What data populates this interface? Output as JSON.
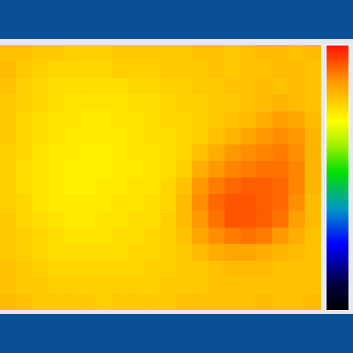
{
  "chart_data": {
    "type": "heatmap",
    "tick_labels": false,
    "colorbar": {
      "range": [
        0,
        1
      ]
    },
    "cells": [
      [
        0.8,
        0.8,
        0.79,
        0.79,
        0.78,
        0.78,
        0.78,
        0.79,
        0.79,
        0.79,
        0.79,
        0.79,
        0.8,
        0.8,
        0.79,
        0.8,
        0.81,
        0.81,
        0.8,
        0.81
      ],
      [
        0.81,
        0.79,
        0.78,
        0.77,
        0.77,
        0.77,
        0.77,
        0.78,
        0.78,
        0.78,
        0.79,
        0.79,
        0.79,
        0.8,
        0.79,
        0.8,
        0.8,
        0.81,
        0.81,
        0.8
      ],
      [
        0.8,
        0.78,
        0.77,
        0.76,
        0.76,
        0.76,
        0.76,
        0.76,
        0.77,
        0.77,
        0.78,
        0.78,
        0.79,
        0.79,
        0.8,
        0.8,
        0.81,
        0.8,
        0.81,
        0.8
      ],
      [
        0.79,
        0.78,
        0.77,
        0.76,
        0.75,
        0.75,
        0.75,
        0.75,
        0.76,
        0.76,
        0.77,
        0.78,
        0.78,
        0.79,
        0.79,
        0.8,
        0.81,
        0.82,
        0.81,
        0.8
      ],
      [
        0.79,
        0.77,
        0.76,
        0.75,
        0.75,
        0.74,
        0.74,
        0.75,
        0.75,
        0.76,
        0.77,
        0.77,
        0.78,
        0.79,
        0.8,
        0.81,
        0.83,
        0.85,
        0.84,
        0.81
      ],
      [
        0.79,
        0.77,
        0.76,
        0.75,
        0.74,
        0.74,
        0.74,
        0.74,
        0.75,
        0.76,
        0.76,
        0.77,
        0.78,
        0.8,
        0.82,
        0.84,
        0.86,
        0.87,
        0.86,
        0.82
      ],
      [
        0.78,
        0.77,
        0.75,
        0.74,
        0.74,
        0.73,
        0.73,
        0.74,
        0.75,
        0.75,
        0.76,
        0.77,
        0.8,
        0.83,
        0.86,
        0.87,
        0.88,
        0.89,
        0.87,
        0.82
      ],
      [
        0.78,
        0.76,
        0.75,
        0.74,
        0.73,
        0.73,
        0.73,
        0.74,
        0.74,
        0.75,
        0.76,
        0.78,
        0.83,
        0.86,
        0.88,
        0.89,
        0.9,
        0.9,
        0.88,
        0.82
      ],
      [
        0.78,
        0.76,
        0.75,
        0.74,
        0.73,
        0.73,
        0.74,
        0.74,
        0.75,
        0.75,
        0.77,
        0.8,
        0.86,
        0.89,
        0.91,
        0.92,
        0.92,
        0.91,
        0.88,
        0.82
      ],
      [
        0.78,
        0.77,
        0.75,
        0.74,
        0.74,
        0.74,
        0.74,
        0.75,
        0.75,
        0.76,
        0.77,
        0.81,
        0.87,
        0.91,
        0.93,
        0.93,
        0.92,
        0.91,
        0.87,
        0.81
      ],
      [
        0.79,
        0.77,
        0.76,
        0.75,
        0.74,
        0.74,
        0.75,
        0.75,
        0.76,
        0.76,
        0.78,
        0.81,
        0.86,
        0.9,
        0.93,
        0.93,
        0.92,
        0.9,
        0.85,
        0.81
      ],
      [
        0.79,
        0.78,
        0.77,
        0.76,
        0.75,
        0.75,
        0.75,
        0.76,
        0.76,
        0.77,
        0.78,
        0.8,
        0.84,
        0.87,
        0.89,
        0.9,
        0.89,
        0.86,
        0.83,
        0.8
      ],
      [
        0.79,
        0.78,
        0.77,
        0.76,
        0.76,
        0.76,
        0.76,
        0.76,
        0.77,
        0.77,
        0.78,
        0.79,
        0.81,
        0.83,
        0.84,
        0.84,
        0.83,
        0.82,
        0.81,
        0.8
      ],
      [
        0.8,
        0.79,
        0.78,
        0.77,
        0.77,
        0.77,
        0.77,
        0.77,
        0.77,
        0.78,
        0.78,
        0.79,
        0.79,
        0.8,
        0.81,
        0.81,
        0.81,
        0.8,
        0.8,
        0.8
      ],
      [
        0.8,
        0.79,
        0.79,
        0.78,
        0.78,
        0.78,
        0.78,
        0.78,
        0.78,
        0.78,
        0.79,
        0.79,
        0.79,
        0.8,
        0.8,
        0.8,
        0.8,
        0.8,
        0.8,
        0.8
      ],
      [
        0.81,
        0.8,
        0.79,
        0.79,
        0.79,
        0.79,
        0.78,
        0.79,
        0.79,
        0.79,
        0.79,
        0.8,
        0.8,
        0.8,
        0.8,
        0.8,
        0.81,
        0.8,
        0.8,
        0.81
      ]
    ]
  }
}
